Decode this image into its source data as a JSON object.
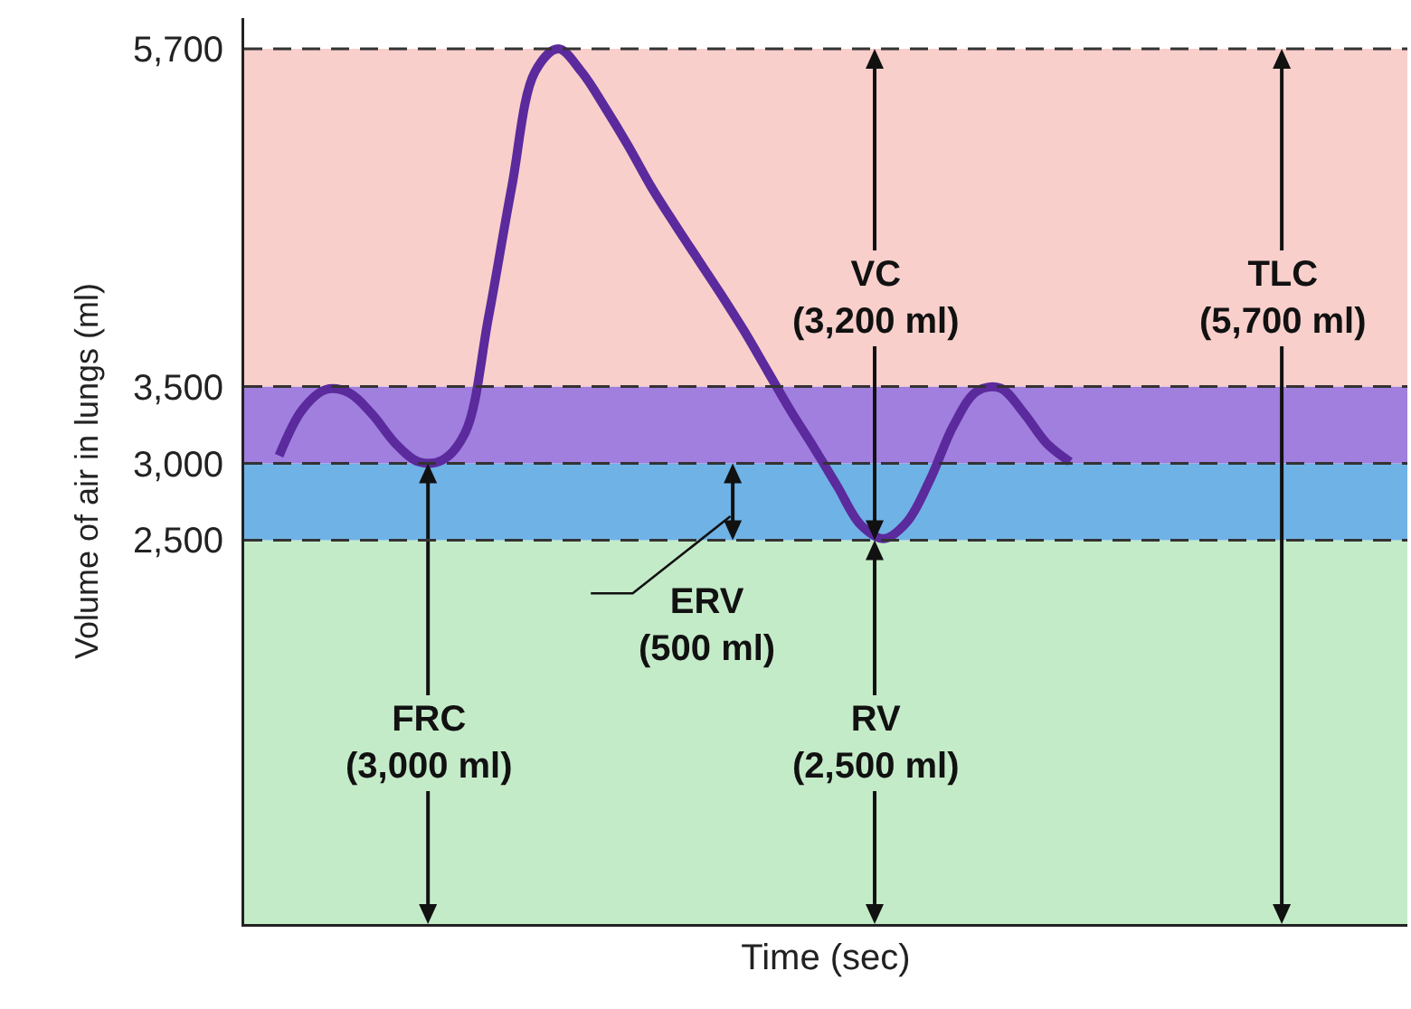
{
  "chart_data": {
    "type": "line",
    "xlabel": "Time (sec)",
    "ylabel": "Volume of air in lungs (ml)",
    "categories": [
      null,
      null,
      null,
      null,
      null,
      null,
      null,
      null,
      null,
      null,
      null,
      null,
      null,
      null,
      null,
      null,
      null,
      null,
      null,
      null,
      null,
      null,
      null,
      null,
      null,
      null,
      null,
      null,
      null,
      null,
      null,
      null,
      null,
      null,
      null,
      null,
      null,
      null,
      null,
      null,
      null,
      null,
      null,
      null,
      null,
      null,
      null,
      null,
      null,
      null
    ],
    "series": [
      {
        "color": "#5b2a9c",
        "values": [
          null,
          3050,
          3350,
          3480,
          3460,
          3320,
          3130,
          3010,
          3020,
          3200,
          3950,
          4800,
          5550,
          5700,
          5550,
          5320,
          5070,
          4800,
          4560,
          4330,
          4100,
          3860,
          3600,
          3340,
          3100,
          2850,
          2600,
          2510,
          2620,
          2900,
          3250,
          3470,
          3490,
          3330,
          3130,
          3010,
          null,
          null,
          null,
          null,
          null,
          null,
          null,
          null,
          null,
          null,
          null,
          null,
          null,
          null
        ]
      }
    ],
    "ylim": [
      0,
      5900
    ],
    "yticks": [
      {
        "value": 2500,
        "label": "2,500"
      },
      {
        "value": 3000,
        "label": "3,000"
      },
      {
        "value": 3500,
        "label": "3,500"
      },
      {
        "value": 5700,
        "label": "5,700"
      }
    ],
    "tick_labels": "y",
    "grid": false,
    "marker": "none",
    "line_style": "solid",
    "ref_lines": [
      {
        "axis": "y",
        "value": 2500,
        "color": "#333333",
        "line_style": "dashed"
      },
      {
        "axis": "y",
        "value": 3000,
        "color": "#333333",
        "line_style": "dashed"
      },
      {
        "axis": "y",
        "value": 3500,
        "color": "#333333",
        "line_style": "dashed"
      },
      {
        "axis": "y",
        "value": 5700,
        "color": "#333333",
        "line_style": "dashed"
      }
    ],
    "bands": [
      {
        "axis": "y",
        "from": 0,
        "to": 2500,
        "color": "#c4ebc8"
      },
      {
        "axis": "y",
        "from": 2500,
        "to": 3000,
        "color": "#6fb2e6"
      },
      {
        "axis": "y",
        "from": 3000,
        "to": 3500,
        "color": "#a07fde"
      },
      {
        "axis": "y",
        "from": 3500,
        "to": 5700,
        "color": "#f8cfcb"
      }
    ],
    "annotations": [
      "FRC\n(3,000 ml)",
      "ERV\n(500 ml)",
      "VC\n(3,200 ml)",
      "RV\n(2,500 ml)",
      "TLC\n(5,700 ml)"
    ]
  }
}
